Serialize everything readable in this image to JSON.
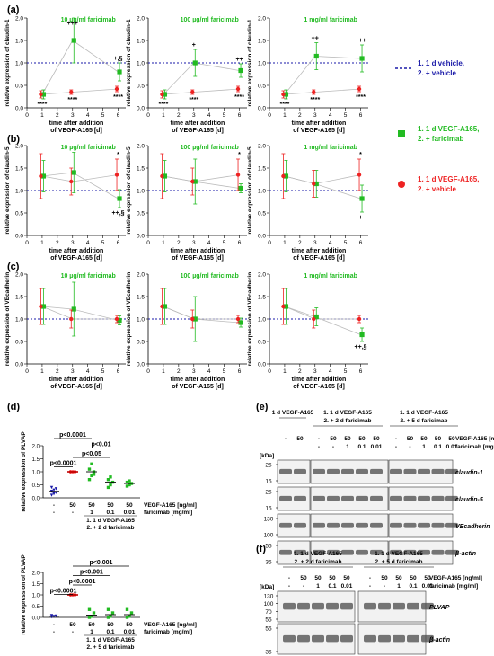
{
  "colors": {
    "vehicle": "#1a1aa8",
    "faricimab": "#22bb22",
    "vegf": "#ee2222",
    "baseline_line": "#c00000",
    "connector": "#bbbbbb",
    "axis": "#000000",
    "blot_bg": "#f2f2f2"
  },
  "legend": {
    "vehicle": [
      "1. 1 d vehicle,",
      "2. + vehicle"
    ],
    "faricimab": [
      "1. 1 d VEGF-A165,",
      "2. + faricimab"
    ],
    "vegf": [
      "1. 1 d VEGF-A165,",
      "2. + vehicle"
    ]
  },
  "panel_labels": [
    "(a)",
    "(b)",
    "(c)",
    "(d)",
    "(e)",
    "(f)"
  ],
  "chart_data": [
    {
      "type": "line",
      "panel": "a",
      "column": 1,
      "title": "10 µg/ml faricimab",
      "ylabel": "relative expression of claudin-1",
      "xlabel": [
        "time after addition",
        "of VEGF-A165 [d]"
      ],
      "x": [
        1,
        3,
        6
      ],
      "xlim": [
        0,
        6.5
      ],
      "xticks": [
        0,
        1,
        2,
        3,
        4,
        5,
        6
      ],
      "ylim": [
        0,
        2
      ],
      "yticks": [
        0,
        0.5,
        1,
        1.5,
        2
      ],
      "ytick_labels": [
        "0.0",
        "0.5",
        "1.0",
        "1.5",
        "2.0"
      ],
      "baseline": 1,
      "series": [
        {
          "key": "faricimab",
          "values": [
            0.3,
            1.5,
            0.8
          ],
          "err": [
            0.1,
            0.5,
            0.2
          ]
        },
        {
          "key": "vegf",
          "values": [
            0.3,
            0.35,
            0.42
          ],
          "err": [
            0.08,
            0.05,
            0.06
          ]
        }
      ],
      "annotations": [
        {
          "x": 1,
          "text": "****",
          "pos": "below"
        },
        {
          "x": 3,
          "text": "+++",
          "pos": "above"
        },
        {
          "x": 3,
          "text": "****",
          "pos": "below"
        },
        {
          "x": 6,
          "text": "+,§",
          "pos": "above"
        },
        {
          "x": 6,
          "text": "****",
          "pos": "below"
        }
      ]
    },
    {
      "type": "line",
      "panel": "a",
      "column": 2,
      "title": "100 µg/ml faricimab",
      "ylabel": "relative expression of claudin-1",
      "xlabel": [
        "time after addition",
        "of VEGF-A165 [d]"
      ],
      "x": [
        1,
        3,
        6
      ],
      "xlim": [
        0,
        6.5
      ],
      "xticks": [
        0,
        1,
        2,
        3,
        4,
        5,
        6
      ],
      "ylim": [
        0,
        2
      ],
      "yticks": [
        0,
        0.5,
        1,
        1.5,
        2
      ],
      "ytick_labels": [
        "0.0",
        "0.5",
        "1.0",
        "1.5",
        "2.0"
      ],
      "baseline": 1,
      "series": [
        {
          "key": "faricimab",
          "values": [
            0.3,
            1.0,
            0.83
          ],
          "err": [
            0.1,
            0.3,
            0.15
          ]
        },
        {
          "key": "vegf",
          "values": [
            0.3,
            0.35,
            0.42
          ],
          "err": [
            0.08,
            0.05,
            0.06
          ]
        }
      ],
      "annotations": [
        {
          "x": 1,
          "text": "****",
          "pos": "below"
        },
        {
          "x": 3,
          "text": "+",
          "pos": "above"
        },
        {
          "x": 3,
          "text": "****",
          "pos": "below"
        },
        {
          "x": 6,
          "text": "++",
          "pos": "above"
        },
        {
          "x": 6,
          "text": "****",
          "pos": "below"
        }
      ]
    },
    {
      "type": "line",
      "panel": "a",
      "column": 3,
      "title": "1 mg/ml faricimab",
      "ylabel": "relative expression of claudin-1",
      "xlabel": [
        "time after addition",
        "of VEGF-A165 [d]"
      ],
      "x": [
        1,
        3,
        6
      ],
      "xlim": [
        0,
        6.5
      ],
      "xticks": [
        0,
        1,
        2,
        3,
        4,
        5,
        6
      ],
      "ylim": [
        0,
        2
      ],
      "yticks": [
        0,
        0.5,
        1,
        1.5,
        2
      ],
      "ytick_labels": [
        "0.0",
        "0.5",
        "1.0",
        "1.5",
        "2.0"
      ],
      "baseline": 1,
      "series": [
        {
          "key": "faricimab",
          "values": [
            0.3,
            1.15,
            1.1
          ],
          "err": [
            0.1,
            0.3,
            0.3
          ]
        },
        {
          "key": "vegf",
          "values": [
            0.3,
            0.35,
            0.42
          ],
          "err": [
            0.08,
            0.05,
            0.06
          ]
        }
      ],
      "annotations": [
        {
          "x": 1,
          "text": "****",
          "pos": "below"
        },
        {
          "x": 3,
          "text": "++",
          "pos": "above"
        },
        {
          "x": 3,
          "text": "****",
          "pos": "below"
        },
        {
          "x": 6,
          "text": "+++",
          "pos": "above"
        },
        {
          "x": 6,
          "text": "****",
          "pos": "below"
        }
      ]
    },
    {
      "type": "line",
      "panel": "b",
      "column": 1,
      "title": "10 µg/ml faricimab",
      "ylabel": "relative expression of claudin-5",
      "xlabel": [
        "time after addition",
        "of VEGF-A165 [d]"
      ],
      "x": [
        1,
        3,
        6
      ],
      "xlim": [
        0,
        6.5
      ],
      "xticks": [
        0,
        1,
        2,
        3,
        4,
        5,
        6
      ],
      "ylim": [
        0,
        2
      ],
      "yticks": [
        0,
        0.5,
        1,
        1.5,
        2
      ],
      "ytick_labels": [
        "0.0",
        "0.5",
        "1.0",
        "1.5",
        "2.0"
      ],
      "baseline": 1,
      "series": [
        {
          "key": "faricimab",
          "values": [
            1.32,
            1.4,
            0.82
          ],
          "err": [
            0.35,
            0.45,
            0.2
          ]
        },
        {
          "key": "vegf",
          "values": [
            1.32,
            1.2,
            1.35
          ],
          "err": [
            0.5,
            0.3,
            0.35
          ]
        }
      ],
      "annotations": [
        {
          "x": 6,
          "text": "*",
          "pos": "above"
        },
        {
          "x": 6,
          "text": "++,§",
          "pos": "below"
        }
      ]
    },
    {
      "type": "line",
      "panel": "b",
      "column": 2,
      "title": "100 µg/ml faricimab",
      "ylabel": "relative expression of claudin-5",
      "xlabel": [
        "time after addition",
        "of VEGF-A165 [d]"
      ],
      "x": [
        1,
        3,
        6
      ],
      "xlim": [
        0,
        6.5
      ],
      "xticks": [
        0,
        1,
        2,
        3,
        4,
        5,
        6
      ],
      "ylim": [
        0,
        2
      ],
      "yticks": [
        0,
        0.5,
        1,
        1.5,
        2
      ],
      "ytick_labels": [
        "0.0",
        "0.5",
        "1.0",
        "1.5",
        "2.0"
      ],
      "baseline": 1,
      "series": [
        {
          "key": "faricimab",
          "values": [
            1.32,
            1.2,
            1.05
          ],
          "err": [
            0.35,
            0.5,
            0.1
          ]
        },
        {
          "key": "vegf",
          "values": [
            1.32,
            1.2,
            1.35
          ],
          "err": [
            0.5,
            0.3,
            0.35
          ]
        }
      ],
      "annotations": [
        {
          "x": 6,
          "text": "*",
          "pos": "above"
        }
      ]
    },
    {
      "type": "line",
      "panel": "b",
      "column": 3,
      "title": "1 mg/ml faricimab",
      "ylabel": "relative expression of claudin-5",
      "xlabel": [
        "time after addition",
        "of VEGF-A165 [d]"
      ],
      "x": [
        1,
        3,
        6
      ],
      "xlim": [
        0,
        6.5
      ],
      "xticks": [
        0,
        1,
        2,
        3,
        4,
        5,
        6
      ],
      "ylim": [
        0,
        2
      ],
      "yticks": [
        0,
        0.5,
        1,
        1.5,
        2
      ],
      "ytick_labels": [
        "0.0",
        "0.5",
        "1.0",
        "1.5",
        "2.0"
      ],
      "baseline": 1,
      "series": [
        {
          "key": "faricimab",
          "values": [
            1.32,
            1.15,
            0.82
          ],
          "err": [
            0.35,
            0.3,
            0.3
          ]
        },
        {
          "key": "vegf",
          "values": [
            1.32,
            1.15,
            1.35
          ],
          "err": [
            0.5,
            0.3,
            0.35
          ]
        }
      ],
      "annotations": [
        {
          "x": 6,
          "text": "*",
          "pos": "above"
        },
        {
          "x": 6,
          "text": "+",
          "pos": "below"
        }
      ]
    },
    {
      "type": "line",
      "panel": "c",
      "column": 1,
      "title": "10 µg/ml faricimab",
      "ylabel": "relative expression of VEcadherin",
      "xlabel": [
        "time after addition",
        "of VEGF-A165 [d]"
      ],
      "x": [
        1,
        3,
        6
      ],
      "xlim": [
        0,
        6.5
      ],
      "xticks": [
        0,
        1,
        2,
        3,
        4,
        5,
        6
      ],
      "ylim": [
        0,
        2
      ],
      "yticks": [
        0,
        0.5,
        1,
        1.5,
        2
      ],
      "ytick_labels": [
        "0.0",
        "0.5",
        "1.0",
        "1.5",
        "2.0"
      ],
      "baseline": 1,
      "series": [
        {
          "key": "faricimab",
          "values": [
            1.28,
            1.22,
            0.97
          ],
          "err": [
            0.4,
            0.6,
            0.1
          ]
        },
        {
          "key": "vegf",
          "values": [
            1.28,
            1.0,
            1.0
          ],
          "err": [
            0.4,
            0.2,
            0.08
          ]
        }
      ],
      "annotations": []
    },
    {
      "type": "line",
      "panel": "c",
      "column": 2,
      "title": "100 µg/ml faricimab",
      "ylabel": "relative expression of VEcadherin",
      "xlabel": [
        "time after addition",
        "of VEGF-A165 [d]"
      ],
      "x": [
        1,
        3,
        6
      ],
      "xlim": [
        0,
        6.5
      ],
      "xticks": [
        0,
        1,
        2,
        3,
        4,
        5,
        6
      ],
      "ylim": [
        0,
        2
      ],
      "yticks": [
        0,
        0.5,
        1,
        1.5,
        2
      ],
      "ytick_labels": [
        "0.0",
        "0.5",
        "1.0",
        "1.5",
        "2.0"
      ],
      "baseline": 1,
      "series": [
        {
          "key": "faricimab",
          "values": [
            1.28,
            1.0,
            0.92
          ],
          "err": [
            0.4,
            0.5,
            0.1
          ]
        },
        {
          "key": "vegf",
          "values": [
            1.28,
            1.0,
            1.0
          ],
          "err": [
            0.4,
            0.2,
            0.08
          ]
        }
      ],
      "annotations": []
    },
    {
      "type": "line",
      "panel": "c",
      "column": 3,
      "title": "1 mg/ml faricimab",
      "ylabel": "relative expression of VEcadherin",
      "xlabel": [
        "time after addition",
        "of VEGF-A165 [d]"
      ],
      "x": [
        1,
        3,
        6
      ],
      "xlim": [
        0,
        6.5
      ],
      "xticks": [
        0,
        1,
        2,
        3,
        4,
        5,
        6
      ],
      "ylim": [
        0,
        2
      ],
      "yticks": [
        0,
        0.5,
        1,
        1.5,
        2
      ],
      "ytick_labels": [
        "0.0",
        "0.5",
        "1.0",
        "1.5",
        "2.0"
      ],
      "baseline": 1,
      "series": [
        {
          "key": "faricimab",
          "values": [
            1.28,
            1.05,
            0.65
          ],
          "err": [
            0.4,
            0.2,
            0.15
          ]
        },
        {
          "key": "vegf",
          "values": [
            1.28,
            1.0,
            1.0
          ],
          "err": [
            0.4,
            0.2,
            0.08
          ]
        }
      ],
      "annotations": [
        {
          "x": 6,
          "text": "++,§",
          "pos": "below"
        }
      ]
    },
    {
      "type": "scatter",
      "panel": "d",
      "row": 1,
      "ylabel": "relative expression of PLVAP",
      "ylim": [
        0,
        2
      ],
      "yticks": [
        0,
        0.5,
        1,
        1.5,
        2
      ],
      "ytick_labels": [
        "0.0",
        "0.5",
        "1.0",
        "1.5",
        "2.0"
      ],
      "row_labels": [
        "VEGF-A165 [ng/ml]",
        "faricimab [mg/ml]"
      ],
      "groups": [
        {
          "key": "vehicle",
          "vegf": "-",
          "faricimab": "-",
          "mean": 0.25,
          "points": [
            0.1,
            0.15,
            0.2,
            0.25,
            0.3,
            0.35,
            0.4
          ]
        },
        {
          "key": "vegf",
          "vegf": "50",
          "faricimab": "-",
          "mean": 1.0,
          "points": [
            1.0,
            1.0,
            1.0,
            1.0
          ]
        },
        {
          "key": "faricimab",
          "vegf": "50",
          "faricimab": "1",
          "mean": 1.0,
          "points": [
            0.7,
            0.85,
            1.0,
            1.1,
            1.3,
            0.9
          ]
        },
        {
          "key": "faricimab",
          "vegf": "50",
          "faricimab": "0.1",
          "mean": 0.6,
          "points": [
            0.4,
            0.5,
            0.6,
            0.7,
            0.8
          ]
        },
        {
          "key": "faricimab",
          "vegf": "50",
          "faricimab": "0.01",
          "mean": 0.55,
          "points": [
            0.45,
            0.5,
            0.55,
            0.6,
            0.65
          ]
        }
      ],
      "comparisons": [
        {
          "from": 0,
          "to": 2,
          "text": "p<0.0001"
        },
        {
          "from": 1,
          "to": 4,
          "text": "p<0.01"
        },
        {
          "from": 1,
          "to": 3,
          "text": "p<0.05"
        },
        {
          "from": 0,
          "to": 1,
          "text": "p<0.0001"
        }
      ],
      "footer": [
        "1. 1 d VEGF-A165",
        "2. + 2 d faricimab"
      ]
    },
    {
      "type": "scatter",
      "panel": "d",
      "row": 2,
      "ylabel": "relative expression of PLVAP",
      "ylim": [
        0,
        2
      ],
      "yticks": [
        0,
        0.5,
        1,
        1.5,
        2
      ],
      "ytick_labels": [
        "0.0",
        "0.5",
        "1.0",
        "1.5",
        "2.0"
      ],
      "row_labels": [
        "VEGF-A165 [ng/ml]",
        "faricimab [mg/ml]"
      ],
      "groups": [
        {
          "key": "vehicle",
          "vegf": "-",
          "faricimab": "-",
          "mean": 0.05,
          "points": [
            0.02,
            0.04,
            0.06,
            0.08
          ]
        },
        {
          "key": "vegf",
          "vegf": "50",
          "faricimab": "-",
          "mean": 1.0,
          "points": [
            1.0,
            1.0,
            1.0,
            1.0
          ]
        },
        {
          "key": "faricimab",
          "vegf": "50",
          "faricimab": "1",
          "mean": 0.1,
          "points": [
            0.0,
            0.05,
            0.2,
            0.35
          ]
        },
        {
          "key": "faricimab",
          "vegf": "50",
          "faricimab": "0.1",
          "mean": 0.12,
          "points": [
            0.0,
            0.05,
            0.2,
            0.35
          ]
        },
        {
          "key": "faricimab",
          "vegf": "50",
          "faricimab": "0.01",
          "mean": 0.12,
          "points": [
            0.0,
            0.05,
            0.2,
            0.35
          ]
        }
      ],
      "comparisons": [
        {
          "from": 1,
          "to": 4,
          "text": "p<0.001"
        },
        {
          "from": 1,
          "to": 3,
          "text": "p<0.001"
        },
        {
          "from": 1,
          "to": 2,
          "text": "p<0.0001"
        },
        {
          "from": 0,
          "to": 1,
          "text": "p<0.0001"
        }
      ],
      "footer": [
        "1. 1 d VEGF-A165",
        "2. + 5 d faricimab"
      ]
    }
  ],
  "blot_e": {
    "groups": [
      {
        "title": [
          "1 d VEGF-A165"
        ],
        "lanes": 2
      },
      {
        "title": [
          "1. 1 d VEGF-A165",
          "2. + 2 d faricimab"
        ],
        "lanes": 5
      },
      {
        "title": [
          "1. 1 d VEGF-A165",
          "2. + 5 d faricimab"
        ],
        "lanes": 5
      }
    ],
    "vegf_row": [
      "-",
      "50",
      "-",
      "50",
      "50",
      "50",
      "50",
      "-",
      "50",
      "50",
      "50",
      "50"
    ],
    "faricimab_row": [
      "",
      "",
      "-",
      "-",
      "1",
      "0.1",
      "0.01",
      "-",
      "-",
      "1",
      "0.1",
      "0.01"
    ],
    "row_labels": [
      "VEGF-A165 [ng/ml]",
      "faricimab [mg/ml]"
    ],
    "kda_label": "[kDa]",
    "strips": [
      {
        "markers": [
          "25",
          "15"
        ],
        "label": "claudin-1"
      },
      {
        "markers": [
          "25",
          "15"
        ],
        "label": "claudin-5"
      },
      {
        "markers": [
          "130",
          "100"
        ],
        "label": "VEcadherin"
      },
      {
        "markers": [
          "55",
          "35"
        ],
        "label": "β-actin"
      }
    ]
  },
  "blot_f": {
    "groups": [
      {
        "title": [
          "1. 1 d VEGF-A165",
          "2. + 2 d faricimab"
        ],
        "lanes": 5
      },
      {
        "title": [
          "1. 1 d VEGF-A165",
          "2. + 5 d faricimab"
        ],
        "lanes": 5
      }
    ],
    "vegf_row": [
      "-",
      "50",
      "50",
      "50",
      "50",
      "-",
      "50",
      "50",
      "50",
      "50"
    ],
    "faricimab_row": [
      "-",
      "-",
      "1",
      "0.1",
      "0.01",
      "-",
      "-",
      "1",
      "0.1",
      "0.01"
    ],
    "row_labels": [
      "VEGF-A165 [ng/ml]",
      "faricimab [mg/ml]"
    ],
    "kda_label": "[kDa]",
    "strips": [
      {
        "markers": [
          "130",
          "100",
          "70",
          "55"
        ],
        "label": "PLVAP"
      },
      {
        "markers": [
          "55",
          "35"
        ],
        "label": "β-actin"
      }
    ]
  }
}
